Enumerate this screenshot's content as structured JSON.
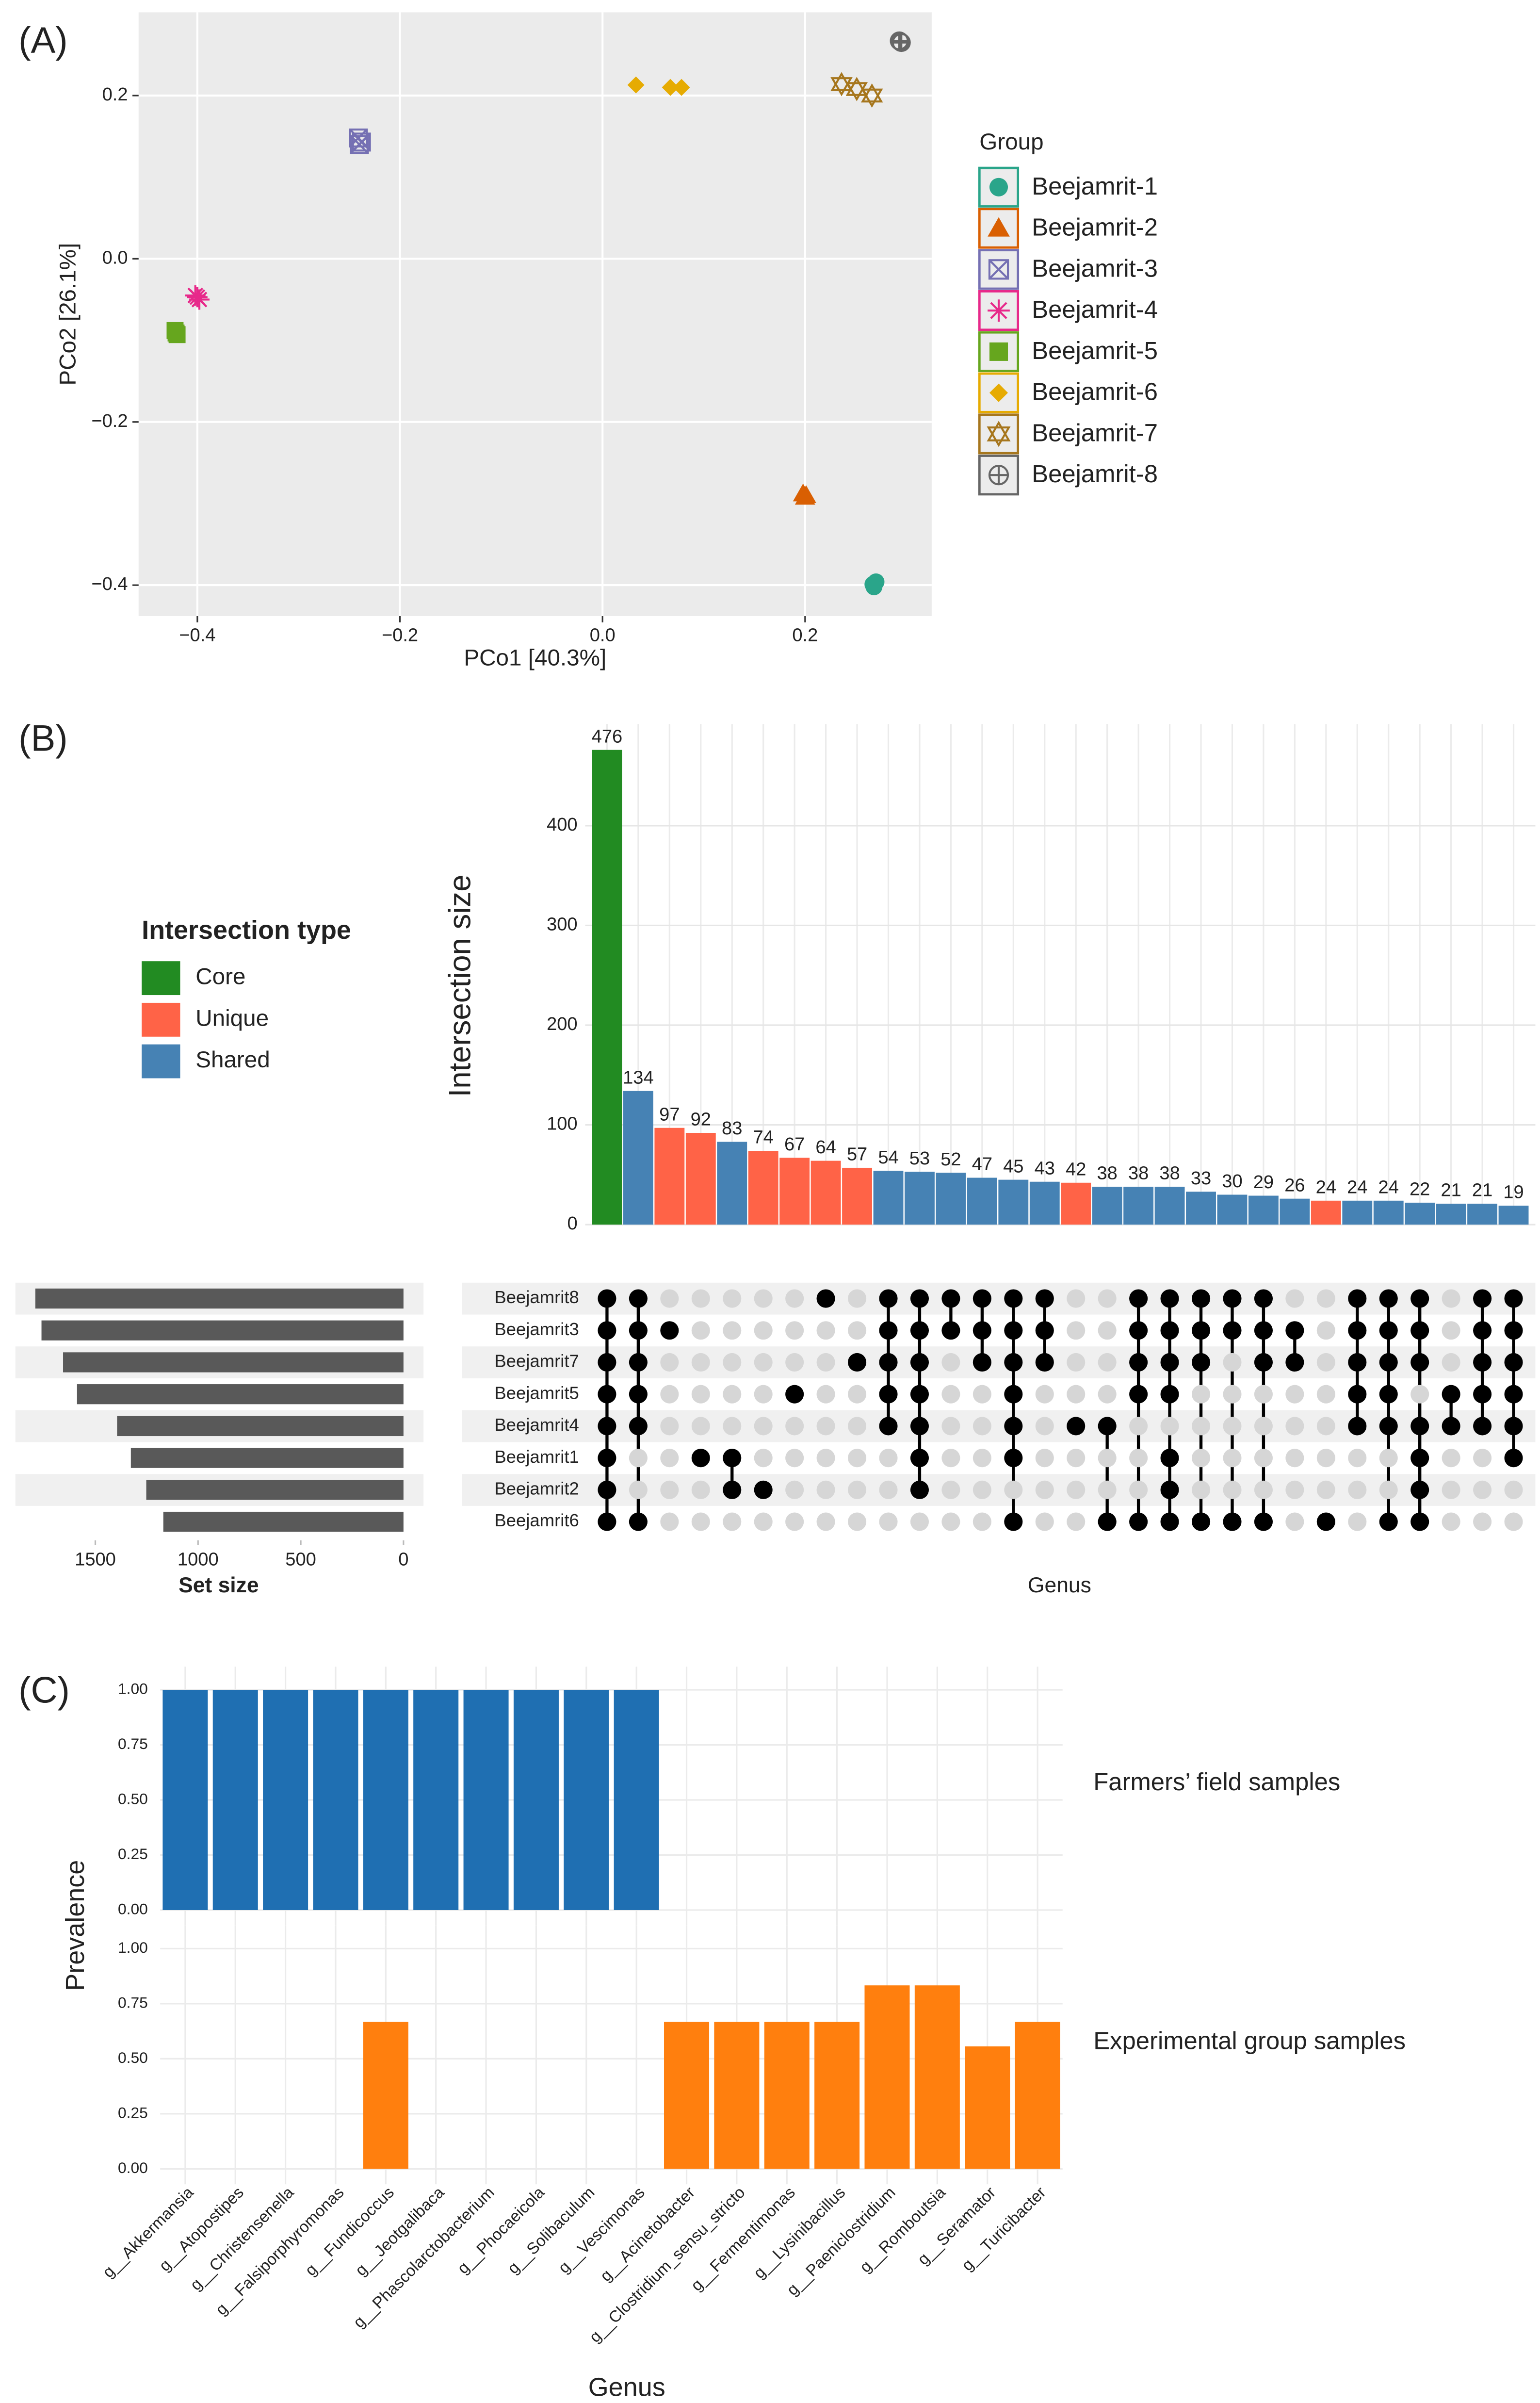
{
  "chart_data": [
    {
      "type": "scatter",
      "label": "(A)",
      "xlabel": "PCo1 [40.3%]",
      "ylabel": "PCo2 [26.1%]",
      "legend_title": "Group",
      "grid": true,
      "xlim": [
        -0.458,
        0.325
      ],
      "xticks": [
        {
          "value": -0.4,
          "label": "−0.4"
        },
        {
          "value": -0.2,
          "label": "−0.2"
        },
        {
          "value": 0,
          "label": "0.0"
        },
        0.2
      ],
      "ylim": [
        -0.438,
        0.302
      ],
      "yticks": [
        {
          "value": -0.4,
          "label": "−0.4"
        },
        {
          "value": -0.2,
          "label": "−0.2"
        },
        {
          "value": 0,
          "label": "0.0"
        },
        0.2
      ],
      "series": [
        {
          "name": "Beejamrit-1",
          "color": "#2aa58a",
          "marker": "circle",
          "x": [
            0.267,
            0.27,
            0.268
          ],
          "values": [
            -0.399,
            -0.396,
            -0.402
          ]
        },
        {
          "name": "Beejamrit-2",
          "color": "#d95f02",
          "marker": "triangle",
          "x": [
            0.198,
            0.201,
            0.2
          ],
          "values": [
            -0.288,
            -0.29,
            -0.292
          ]
        },
        {
          "name": "Beejamrit-3",
          "color": "#7570b3",
          "marker": "square-x",
          "x": [
            -0.241,
            -0.238,
            -0.24
          ],
          "values": [
            0.148,
            0.143,
            0.14
          ]
        },
        {
          "name": "Beejamrit-4",
          "color": "#e7298a",
          "marker": "asterisk",
          "x": [
            -0.402,
            -0.398,
            -0.4
          ],
          "values": [
            -0.045,
            -0.05,
            -0.047
          ]
        },
        {
          "name": "Beejamrit-5",
          "color": "#66a61e",
          "marker": "square",
          "x": [
            -0.422,
            -0.42,
            -0.421
          ],
          "values": [
            -0.088,
            -0.093,
            -0.091
          ]
        },
        {
          "name": "Beejamrit-6",
          "color": "#e6ab02",
          "marker": "diamond",
          "x": [
            0.033,
            0.067,
            0.078
          ],
          "values": [
            0.213,
            0.21,
            0.21
          ]
        },
        {
          "name": "Beejamrit-7",
          "color": "#a6761d",
          "marker": "star",
          "x": [
            0.236,
            0.251,
            0.266
          ],
          "values": [
            0.214,
            0.208,
            0.2
          ]
        },
        {
          "name": "Beejamrit-8",
          "color": "#666666",
          "marker": "circle-plus",
          "x": [
            0.293,
            0.295,
            0.294
          ],
          "values": [
            0.267,
            0.265,
            0.266
          ]
        }
      ]
    },
    {
      "type": "upset",
      "label": "(B)",
      "ylabel": "Intersection size",
      "xlabel": "Genus",
      "set_xlabel": "Set size",
      "legend_title": "Intersection type",
      "types": [
        {
          "name": "Core",
          "color": "#228b22"
        },
        {
          "name": "Unique",
          "color": "#ff6347"
        },
        {
          "name": "Shared",
          "color": "#4682b4"
        }
      ],
      "ylim": [
        0,
        502
      ],
      "yticks": [
        0,
        100,
        200,
        300,
        400
      ],
      "intersection_sizes": [
        476,
        134,
        97,
        92,
        83,
        74,
        67,
        64,
        57,
        54,
        53,
        52,
        47,
        45,
        43,
        42,
        38,
        38,
        38,
        33,
        30,
        29,
        26,
        24,
        24,
        24,
        22,
        21,
        21,
        19
      ],
      "intersection_types": [
        "Core",
        "Shared",
        "Unique",
        "Unique",
        "Shared",
        "Unique",
        "Unique",
        "Unique",
        "Unique",
        "Shared",
        "Shared",
        "Shared",
        "Shared",
        "Shared",
        "Shared",
        "Unique",
        "Shared",
        "Shared",
        "Shared",
        "Shared",
        "Shared",
        "Shared",
        "Shared",
        "Unique",
        "Shared",
        "Shared",
        "Shared",
        "Shared",
        "Shared",
        "Shared"
      ],
      "sets": [
        "Beejamrit8",
        "Beejamrit3",
        "Beejamrit7",
        "Beejamrit5",
        "Beejamrit4",
        "Beejamrit1",
        "Beejamrit2",
        "Beejamrit6"
      ],
      "set_sizes": [
        1792,
        1762,
        1657,
        1589,
        1394,
        1327,
        1252,
        1169
      ],
      "set_xlim": [
        0,
        1889
      ],
      "set_xticks": [
        0,
        500,
        1000,
        1500
      ],
      "matrix": [
        [
          1,
          1,
          0,
          0,
          0,
          0,
          0,
          1,
          0,
          1,
          1,
          1,
          1,
          1,
          1,
          0,
          0,
          1,
          1,
          1,
          1,
          1,
          0,
          0,
          1,
          1,
          1,
          0,
          1,
          1
        ],
        [
          1,
          1,
          1,
          0,
          0,
          0,
          0,
          0,
          0,
          1,
          1,
          1,
          1,
          1,
          1,
          0,
          0,
          1,
          1,
          1,
          1,
          1,
          1,
          0,
          1,
          1,
          1,
          0,
          1,
          1
        ],
        [
          1,
          1,
          0,
          0,
          0,
          0,
          0,
          0,
          1,
          1,
          1,
          0,
          1,
          1,
          1,
          0,
          0,
          1,
          1,
          1,
          0,
          1,
          1,
          0,
          1,
          1,
          1,
          0,
          1,
          1
        ],
        [
          1,
          1,
          0,
          0,
          0,
          0,
          1,
          0,
          0,
          1,
          1,
          0,
          0,
          1,
          0,
          0,
          0,
          1,
          1,
          0,
          0,
          0,
          0,
          0,
          1,
          1,
          0,
          1,
          1,
          1
        ],
        [
          1,
          1,
          0,
          0,
          0,
          0,
          0,
          0,
          0,
          1,
          1,
          0,
          0,
          1,
          0,
          1,
          1,
          0,
          0,
          0,
          0,
          0,
          0,
          0,
          1,
          1,
          1,
          1,
          1,
          1
        ],
        [
          1,
          0,
          0,
          1,
          1,
          0,
          0,
          0,
          0,
          0,
          1,
          0,
          0,
          1,
          0,
          0,
          0,
          0,
          1,
          0,
          0,
          0,
          0,
          0,
          0,
          0,
          1,
          0,
          0,
          1
        ],
        [
          1,
          0,
          0,
          0,
          1,
          1,
          0,
          0,
          0,
          0,
          1,
          0,
          0,
          0,
          0,
          0,
          0,
          0,
          1,
          0,
          0,
          0,
          0,
          0,
          0,
          0,
          1,
          0,
          0,
          0
        ],
        [
          1,
          1,
          0,
          0,
          0,
          0,
          0,
          0,
          0,
          0,
          0,
          0,
          0,
          1,
          0,
          0,
          1,
          1,
          1,
          1,
          1,
          1,
          0,
          1,
          0,
          1,
          1,
          0,
          0,
          0
        ]
      ]
    },
    {
      "type": "facet_bar",
      "label": "(C)",
      "ylabel": "Prevalence",
      "xlabel": "Genus",
      "categories": [
        "g__Akkermansia",
        "g__Atopostipes",
        "g__Christensenella",
        "g__Falsiporphyromonas",
        "g__Fundicoccus",
        "g__Jeotgalibaca",
        "g__Phascolarctobacterium",
        "g__Phocaeicola",
        "g__Solibaculum",
        "g__Vescimonas",
        "g__Acinetobacter",
        "g__Clostridium_sensu_stricto",
        "g__Fermentimonas",
        "g__Lysinibacillus",
        "g__Paeniclostridium",
        "g__Romboutsia",
        "g__Seramator",
        "g__Turicibacter"
      ],
      "ylim": [
        -0.07,
        1.105
      ],
      "yticks": [
        {
          "value": 0,
          "label": "0.00"
        },
        {
          "value": 0.25,
          "label": "0.25"
        },
        {
          "value": 0.5,
          "label": "0.50"
        },
        {
          "value": 0.75,
          "label": "0.75"
        },
        {
          "value": 1,
          "label": "1.00"
        }
      ],
      "series": [
        {
          "name": "Farmers’ field samples",
          "color": "#1f6fb2",
          "values": [
            1,
            1,
            1,
            1,
            1,
            1,
            1,
            1,
            1,
            1,
            0,
            0,
            0,
            0,
            0,
            0,
            0,
            0
          ]
        },
        {
          "name": "Experimental group samples",
          "color": "#ff7f0e",
          "values": [
            0,
            0,
            0,
            0,
            0.667,
            0,
            0,
            0,
            0,
            0,
            0.667,
            0.667,
            0.667,
            0.667,
            0.833,
            0.833,
            0.556,
            0.667
          ]
        }
      ]
    }
  ]
}
